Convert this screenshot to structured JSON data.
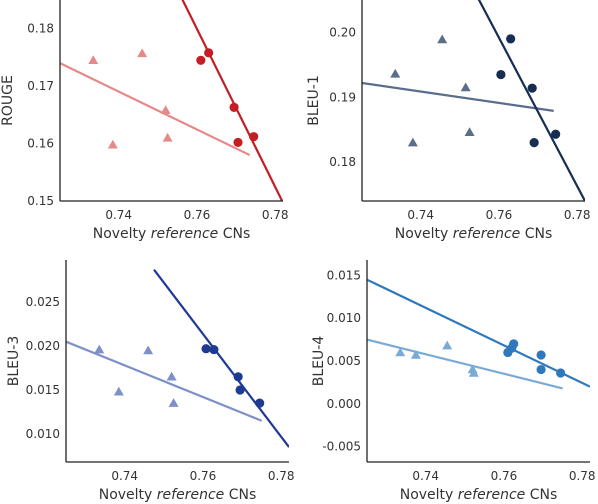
{
  "chart_data": [
    {
      "type": "scatter",
      "xlabel_parts": [
        "Novelty ",
        "reference",
        " CNs"
      ],
      "ylabel": "ROUGE",
      "xlim": [
        0.725,
        0.782
      ],
      "ylim": [
        0.15,
        0.185
      ],
      "xticks": [
        0.74,
        0.76,
        0.78
      ],
      "xtick_labels": [
        "0.74",
        "0.76",
        "0.78"
      ],
      "yticks": [
        0.15,
        0.16,
        0.17,
        0.18
      ],
      "ytick_labels": [
        "0.15",
        "0.16",
        "0.17",
        "0.18"
      ],
      "grid": false,
      "series": [
        {
          "marker": "triangle",
          "color": "#e58a8a",
          "points": [
            [
              0.7335,
              0.1745
            ],
            [
              0.7385,
              0.1598
            ],
            [
              0.746,
              0.1757
            ],
            [
              0.752,
              0.1658
            ],
            [
              0.7525,
              0.161
            ]
          ],
          "fit": {
            "x": [
              0.725,
              0.7735
            ],
            "y": [
              0.174,
              0.158
            ]
          }
        },
        {
          "marker": "circle",
          "color": "#c41e24",
          "points": [
            [
              0.761,
              0.1745
            ],
            [
              0.763,
              0.1758
            ],
            [
              0.7695,
              0.1663
            ],
            [
              0.7705,
              0.1602
            ],
            [
              0.7745,
              0.1612
            ]
          ],
          "fit": {
            "x": [
              0.7445,
              0.782
            ],
            "y": [
              0.2013,
              0.1497
            ]
          }
        }
      ]
    },
    {
      "type": "scatter",
      "xlabel_parts": [
        "Novelty ",
        "reference",
        " CNs"
      ],
      "ylabel": "BLEU-1",
      "xlim": [
        0.725,
        0.782
      ],
      "ylim": [
        0.174,
        0.205
      ],
      "xticks": [
        0.74,
        0.76,
        0.78
      ],
      "xtick_labels": [
        "0.74",
        "0.76",
        "0.78"
      ],
      "yticks": [
        0.18,
        0.19,
        0.2
      ],
      "ytick_labels": [
        "0.18",
        "0.19",
        "0.20"
      ],
      "grid": false,
      "series": [
        {
          "marker": "triangle",
          "color": "#5a6e8c",
          "points": [
            [
              0.7335,
              0.1936
            ],
            [
              0.738,
              0.183
            ],
            [
              0.7455,
              0.1989
            ],
            [
              0.7515,
              0.1915
            ],
            [
              0.7525,
              0.1846
            ]
          ],
          "fit": {
            "x": [
              0.725,
              0.774
            ],
            "y": [
              0.1922,
              0.1879
            ]
          }
        },
        {
          "marker": "circle",
          "color": "#172d52",
          "points": [
            [
              0.7605,
              0.1935
            ],
            [
              0.763,
              0.199
            ],
            [
              0.7685,
              0.1914
            ],
            [
              0.769,
              0.183
            ],
            [
              0.7745,
              0.1843
            ]
          ],
          "fit": {
            "x": [
              0.7475,
              0.782
            ],
            "y": [
              0.2135,
              0.174
            ]
          }
        }
      ]
    },
    {
      "type": "scatter",
      "xlabel_parts": [
        "Novelty ",
        "reference",
        " CNs"
      ],
      "ylabel": "BLEU-3",
      "xlim": [
        0.725,
        0.782
      ],
      "ylim": [
        0.0068,
        0.0298
      ],
      "xticks": [
        0.74,
        0.76,
        0.78
      ],
      "xtick_labels": [
        "0.74",
        "0.76",
        "0.78"
      ],
      "yticks": [
        0.01,
        0.015,
        0.02,
        0.025
      ],
      "ytick_labels": [
        "0.010",
        "0.015",
        "0.020",
        "0.025"
      ],
      "grid": false,
      "series": [
        {
          "marker": "triangle",
          "color": "#7d90c8",
          "points": [
            [
              0.7335,
              0.0196
            ],
            [
              0.7385,
              0.0148
            ],
            [
              0.746,
              0.0195
            ],
            [
              0.752,
              0.0165
            ],
            [
              0.7525,
              0.0135
            ]
          ],
          "fit": {
            "x": [
              0.725,
              0.775
            ],
            "y": [
              0.0205,
              0.0115
            ]
          }
        },
        {
          "marker": "circle",
          "color": "#1f3a93",
          "points": [
            [
              0.7608,
              0.0197
            ],
            [
              0.7628,
              0.0196
            ],
            [
              0.769,
              0.0165
            ],
            [
              0.7695,
              0.015
            ],
            [
              0.7745,
              0.0135
            ]
          ],
          "fit": {
            "x": [
              0.7475,
              0.782
            ],
            "y": [
              0.0287,
              0.0085
            ]
          }
        }
      ]
    },
    {
      "type": "scatter",
      "xlabel_parts": [
        "Novelty ",
        "reference",
        " CNs"
      ],
      "ylabel": "BLEU-4",
      "xlim": [
        0.725,
        0.782
      ],
      "ylim": [
        -0.0068,
        0.0168
      ],
      "xticks": [
        0.74,
        0.76,
        0.78
      ],
      "xtick_labels": [
        "0.74",
        "0.76",
        "0.78"
      ],
      "yticks": [
        -0.005,
        0.0,
        0.005,
        0.01,
        0.015
      ],
      "ytick_labels": [
        "-0.005",
        "0.000",
        "0.005",
        "0.010",
        "0.015"
      ],
      "grid": false,
      "series": [
        {
          "marker": "triangle",
          "color": "#7aaad6",
          "points": [
            [
              0.7335,
              0.006
            ],
            [
              0.7375,
              0.0057
            ],
            [
              0.7455,
              0.0068
            ],
            [
              0.752,
              0.004
            ],
            [
              0.7523,
              0.0036
            ]
          ],
          "fit": {
            "x": [
              0.725,
              0.775
            ],
            "y": [
              0.0075,
              0.0018
            ]
          }
        },
        {
          "marker": "circle",
          "color": "#2f78be",
          "points": [
            [
              0.761,
              0.006
            ],
            [
              0.762,
              0.0065
            ],
            [
              0.7625,
              0.007
            ],
            [
              0.7695,
              0.0057
            ],
            [
              0.7695,
              0.004
            ],
            [
              0.7745,
              0.0036
            ]
          ],
          "fit": {
            "x": [
              0.725,
              0.782
            ],
            "y": [
              0.0145,
              0.002
            ]
          }
        }
      ]
    }
  ]
}
